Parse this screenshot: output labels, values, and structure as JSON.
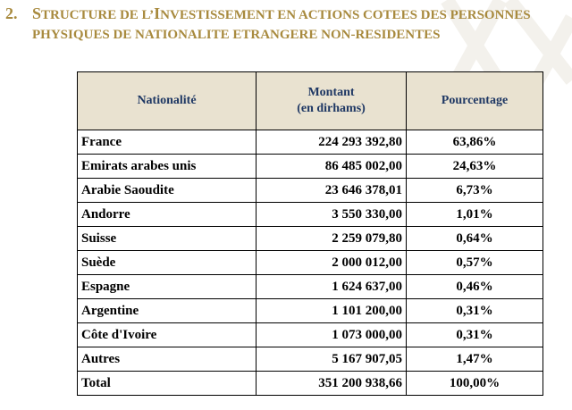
{
  "heading": {
    "number": "2.",
    "line1_initial": "S",
    "line1_rest": "TRUCTURE DE L’",
    "line1_initial2": "I",
    "line1_rest2": "NVESTISSEMENT EN ACTIONS COTEES DES  PERSONNES",
    "line2": "PHYSIQUES DE NATIONALITE ETRANGERE NON-RESIDENTES"
  },
  "table": {
    "headers": {
      "nationality": "Nationalité",
      "amount_line1": "Montant",
      "amount_line2": "(en dirhams)",
      "percentage": "Pourcentage"
    },
    "rows": [
      {
        "nationality": "France",
        "amount": "224 293 392,80",
        "percentage": "63,86%"
      },
      {
        "nationality": "Emirats arabes unis",
        "amount": "86 485 002,00",
        "percentage": "24,63%"
      },
      {
        "nationality": "Arabie Saoudite",
        "amount": "23 646 378,01",
        "percentage": "6,73%"
      },
      {
        "nationality": "Andorre",
        "amount": "3 550 330,00",
        "percentage": "1,01%"
      },
      {
        "nationality": "Suisse",
        "amount": "2 259 079,80",
        "percentage": "0,64%"
      },
      {
        "nationality": "Suède",
        "amount": "2 000 012,00",
        "percentage": "0,57%"
      },
      {
        "nationality": "Espagne",
        "amount": "1 624 637,00",
        "percentage": "0,46%"
      },
      {
        "nationality": "Argentine",
        "amount": "1 101 200,00",
        "percentage": "0,31%"
      },
      {
        "nationality": "Côte d'Ivoire",
        "amount": "1 073 000,00",
        "percentage": "0,31%"
      },
      {
        "nationality": "Autres",
        "amount": "5 167 907,05",
        "percentage": "1,47%"
      },
      {
        "nationality": "Total",
        "amount": "351 200 938,66",
        "percentage": "100,00%"
      }
    ]
  },
  "colors": {
    "heading_gold": "#a88a3e",
    "header_fill": "#e9e2d0",
    "header_text": "#1f3864"
  }
}
